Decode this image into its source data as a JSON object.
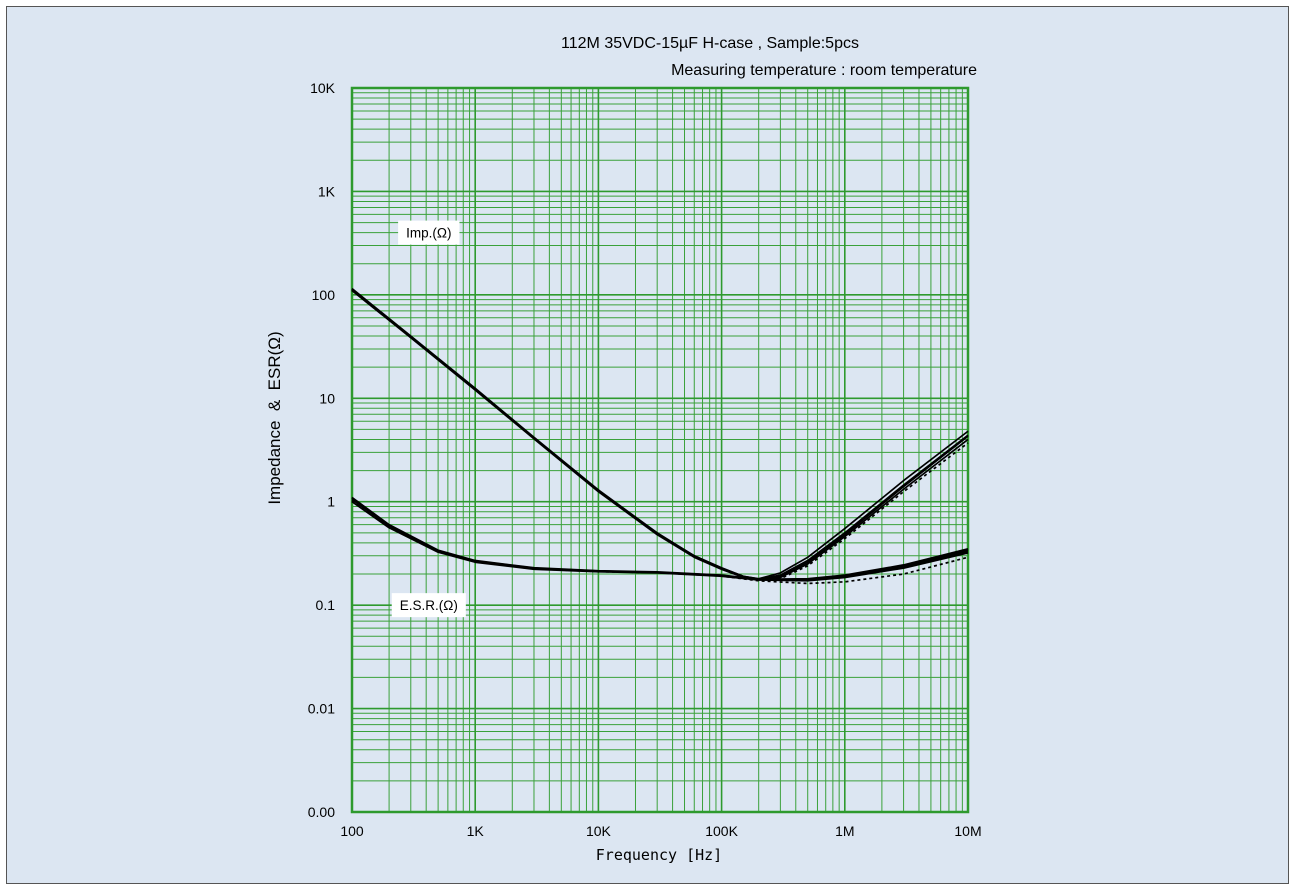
{
  "chart_data": {
    "type": "line",
    "title": "112M 35VDC-15µF H-case , Sample:5pcs",
    "subtitle": "Measuring temperature : room temperature",
    "xlabel": "Frequency [Hz]",
    "ylabel": "Impedance  &  ESR(Ω)",
    "x_scale": "log",
    "y_scale": "log",
    "xlim": [
      100,
      10000000
    ],
    "ylim": [
      0.001,
      10000
    ],
    "grid": true,
    "x_ticks": [
      {
        "value": 100,
        "label": "100"
      },
      {
        "value": 1000,
        "label": "1K"
      },
      {
        "value": 10000,
        "label": "10K"
      },
      {
        "value": 100000,
        "label": "100K"
      },
      {
        "value": 1000000,
        "label": "1M"
      },
      {
        "value": 10000000,
        "label": "10M"
      }
    ],
    "y_ticks": [
      {
        "value": 0.001,
        "label": "0.00"
      },
      {
        "value": 0.01,
        "label": "0.01"
      },
      {
        "value": 0.1,
        "label": "0.1"
      },
      {
        "value": 1,
        "label": "1"
      },
      {
        "value": 10,
        "label": "10"
      },
      {
        "value": 100,
        "label": "100"
      },
      {
        "value": 1000,
        "label": "1K"
      },
      {
        "value": 10000,
        "label": "10K"
      }
    ],
    "annotations": [
      {
        "text": "Imp.(Ω)",
        "x": 420,
        "y": 400
      },
      {
        "text": "E.S.R.(Ω)",
        "x": 420,
        "y": 0.1
      }
    ],
    "series": [
      {
        "group": "imp",
        "style": "solid",
        "points": [
          [
            100,
            115
          ],
          [
            300,
            40
          ],
          [
            1000,
            12.5
          ],
          [
            3000,
            4.2
          ],
          [
            10000,
            1.3
          ],
          [
            30000,
            0.5
          ],
          [
            60000,
            0.3
          ],
          [
            100000,
            0.23
          ],
          [
            150000,
            0.19
          ],
          [
            200000,
            0.18
          ],
          [
            300000,
            0.205
          ],
          [
            500000,
            0.29
          ],
          [
            1000000,
            0.55
          ],
          [
            3000000,
            1.6
          ],
          [
            10000000,
            4.8
          ]
        ]
      },
      {
        "group": "imp",
        "style": "solid",
        "points": [
          [
            100,
            112
          ],
          [
            300,
            39
          ],
          [
            1000,
            12.2
          ],
          [
            3000,
            4.1
          ],
          [
            10000,
            1.27
          ],
          [
            30000,
            0.49
          ],
          [
            60000,
            0.295
          ],
          [
            100000,
            0.225
          ],
          [
            150000,
            0.188
          ],
          [
            200000,
            0.178
          ],
          [
            300000,
            0.195
          ],
          [
            500000,
            0.27
          ],
          [
            1000000,
            0.5
          ],
          [
            3000000,
            1.45
          ],
          [
            10000000,
            4.4
          ]
        ]
      },
      {
        "group": "imp",
        "style": "solid",
        "points": [
          [
            100,
            110
          ],
          [
            300,
            38.5
          ],
          [
            1000,
            12
          ],
          [
            3000,
            4.05
          ],
          [
            10000,
            1.25
          ],
          [
            30000,
            0.48
          ],
          [
            60000,
            0.29
          ],
          [
            100000,
            0.222
          ],
          [
            150000,
            0.186
          ],
          [
            200000,
            0.176
          ],
          [
            300000,
            0.185
          ],
          [
            500000,
            0.25
          ],
          [
            1000000,
            0.46
          ],
          [
            3000000,
            1.32
          ],
          [
            10000000,
            4.0
          ]
        ]
      },
      {
        "group": "imp",
        "style": "solid",
        "points": [
          [
            100,
            113
          ],
          [
            300,
            39.5
          ],
          [
            1000,
            12.3
          ],
          [
            3000,
            4.15
          ],
          [
            10000,
            1.28
          ],
          [
            30000,
            0.49
          ],
          [
            60000,
            0.3
          ],
          [
            100000,
            0.228
          ],
          [
            150000,
            0.19
          ],
          [
            200000,
            0.179
          ],
          [
            300000,
            0.19
          ],
          [
            500000,
            0.26
          ],
          [
            1000000,
            0.48
          ],
          [
            3000000,
            1.4
          ],
          [
            10000000,
            4.3
          ]
        ]
      },
      {
        "group": "imp",
        "style": "dashed",
        "points": [
          [
            100,
            111
          ],
          [
            300,
            39
          ],
          [
            1000,
            12.1
          ],
          [
            3000,
            4.1
          ],
          [
            10000,
            1.26
          ],
          [
            30000,
            0.485
          ],
          [
            60000,
            0.292
          ],
          [
            100000,
            0.224
          ],
          [
            150000,
            0.187
          ],
          [
            200000,
            0.177
          ],
          [
            300000,
            0.18
          ],
          [
            500000,
            0.24
          ],
          [
            1000000,
            0.44
          ],
          [
            3000000,
            1.25
          ],
          [
            10000000,
            3.7
          ]
        ]
      },
      {
        "group": "esr",
        "style": "solid",
        "points": [
          [
            100,
            1.1
          ],
          [
            200,
            0.6
          ],
          [
            500,
            0.34
          ],
          [
            1000,
            0.27
          ],
          [
            3000,
            0.23
          ],
          [
            10000,
            0.215
          ],
          [
            30000,
            0.21
          ],
          [
            100000,
            0.195
          ],
          [
            200000,
            0.178
          ],
          [
            500000,
            0.18
          ],
          [
            1000000,
            0.195
          ],
          [
            3000000,
            0.245
          ],
          [
            10000000,
            0.35
          ]
        ]
      },
      {
        "group": "esr",
        "style": "solid",
        "points": [
          [
            100,
            1.05
          ],
          [
            200,
            0.58
          ],
          [
            500,
            0.33
          ],
          [
            1000,
            0.265
          ],
          [
            3000,
            0.225
          ],
          [
            10000,
            0.212
          ],
          [
            30000,
            0.207
          ],
          [
            100000,
            0.193
          ],
          [
            200000,
            0.176
          ],
          [
            500000,
            0.176
          ],
          [
            1000000,
            0.19
          ],
          [
            3000000,
            0.235
          ],
          [
            10000000,
            0.33
          ]
        ]
      },
      {
        "group": "esr",
        "style": "solid",
        "points": [
          [
            100,
            1.0
          ],
          [
            200,
            0.56
          ],
          [
            500,
            0.325
          ],
          [
            1000,
            0.26
          ],
          [
            3000,
            0.222
          ],
          [
            10000,
            0.21
          ],
          [
            30000,
            0.205
          ],
          [
            100000,
            0.19
          ],
          [
            200000,
            0.175
          ],
          [
            500000,
            0.172
          ],
          [
            1000000,
            0.185
          ],
          [
            3000000,
            0.228
          ],
          [
            10000000,
            0.32
          ]
        ]
      },
      {
        "group": "esr",
        "style": "solid",
        "points": [
          [
            100,
            1.08
          ],
          [
            200,
            0.59
          ],
          [
            500,
            0.335
          ],
          [
            1000,
            0.268
          ],
          [
            3000,
            0.228
          ],
          [
            10000,
            0.214
          ],
          [
            30000,
            0.208
          ],
          [
            100000,
            0.194
          ],
          [
            200000,
            0.177
          ],
          [
            500000,
            0.178
          ],
          [
            1000000,
            0.192
          ],
          [
            3000000,
            0.24
          ],
          [
            10000000,
            0.34
          ]
        ]
      },
      {
        "group": "esr",
        "style": "dashed",
        "points": [
          [
            100,
            1.02
          ],
          [
            200,
            0.57
          ],
          [
            500,
            0.33
          ],
          [
            1000,
            0.262
          ],
          [
            3000,
            0.224
          ],
          [
            10000,
            0.211
          ],
          [
            30000,
            0.206
          ],
          [
            100000,
            0.191
          ],
          [
            200000,
            0.172
          ],
          [
            500000,
            0.162
          ],
          [
            1000000,
            0.168
          ],
          [
            3000000,
            0.2
          ],
          [
            10000000,
            0.29
          ]
        ]
      }
    ]
  }
}
